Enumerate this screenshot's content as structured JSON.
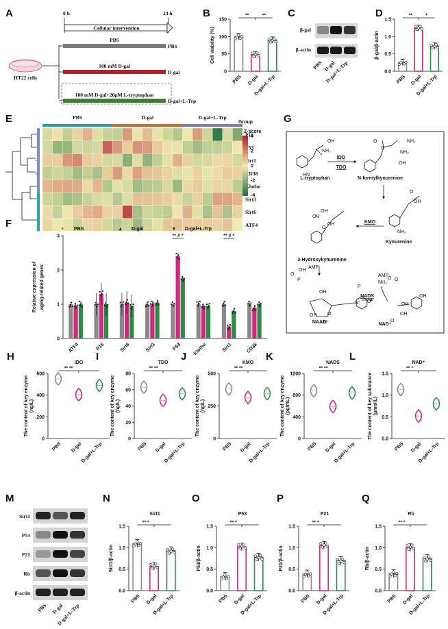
{
  "colors": {
    "pbs": "#8a8a8a",
    "dgal": "#d0287e",
    "ltrp": "#2e8b46",
    "heat_hi": "#b01c2a",
    "heat_mid": "#f2ebb0",
    "heat_lo": "#1d6e3a"
  },
  "panels": {
    "A": {
      "letter": "A",
      "t0": "0 h",
      "t24": "24 h",
      "header": "Cellular intervention",
      "cells": "HT22 cells",
      "rows": [
        {
          "text": "PBS",
          "label": "PBS"
        },
        {
          "text": "100 mM D-gal",
          "label": "D-gal"
        },
        {
          "text": "100 mM D-gal+20μM L-tryptophan",
          "label": "D-gal+L-Trp"
        }
      ]
    },
    "B": {
      "letter": "B",
      "sig1": "**",
      "sig2": "**"
    },
    "C": {
      "letter": "C",
      "rows": [
        "β-gal",
        "β-actin"
      ],
      "lanes": [
        "PBS",
        "D-gal",
        "D-gal+L-Trp"
      ]
    },
    "D": {
      "letter": "D",
      "sig1": "**",
      "sig2": "*"
    },
    "E": {
      "letter": "E",
      "group_label": "Group",
      "groups": [
        "PBS",
        "D-gal",
        "D-gal+L-Trp"
      ],
      "genes": [
        "P16",
        "P53",
        "Sirt1",
        "CD38",
        "Klotho",
        "Sirt3",
        "Sirt6",
        "ATF4"
      ],
      "legend_title": "Z-score",
      "legend_ticks": [
        "4",
        "2",
        "0",
        "-2",
        "-4"
      ]
    },
    "F": {
      "letter": "F",
      "legend": [
        "PBS",
        "D-gal",
        "D-gal+L-Trp"
      ],
      "markers": [
        "•",
        "▴",
        "▾"
      ],
      "sig": "** # *"
    },
    "G": {
      "letter": "G",
      "enzymes": [
        "IDO",
        "TDO",
        "KMO",
        "NADS"
      ],
      "compounds": [
        "L-tryptophan",
        "N-formylkynurenine",
        "Kynurenine",
        "3-Hydroxykynurenine",
        "NAAD",
        "NAD⁺"
      ],
      "groups": [
        "OH",
        "NH₂",
        "HN",
        "NH₂",
        "OH",
        "O",
        "NH₂",
        "O",
        "OH",
        "O",
        "NH₂",
        "OH",
        "OH",
        "OH",
        "O",
        "AMP",
        "P",
        "OH",
        "O",
        "OH",
        "OH",
        "N⁺",
        "O",
        "N⁺",
        "NH₂",
        "O",
        "P",
        "AMP",
        "O",
        "O",
        "OH",
        "O",
        "OH",
        "OH"
      ]
    },
    "H": {
      "letter": "H",
      "title": "IDO",
      "sig": "** **"
    },
    "I": {
      "letter": "I",
      "title": "TDO",
      "sig": "** **"
    },
    "J": {
      "letter": "J",
      "title": "KMO",
      "sig": "** **"
    },
    "K": {
      "letter": "K",
      "title": "NADS",
      "sig": "** **"
    },
    "L": {
      "letter": "L",
      "title": "NAD⁺",
      "sig": "** *"
    },
    "M": {
      "letter": "M",
      "rows": [
        "Sirt1",
        "P53",
        "P21",
        "Rb",
        "β-actin"
      ],
      "lanes": [
        "PBS",
        "D-gal",
        "D-gal+L-Trp"
      ]
    },
    "N": {
      "letter": "N",
      "title": "Sirt1",
      "sig": "** *"
    },
    "O": {
      "letter": "O",
      "title": "P53",
      "sig": "** *"
    },
    "P": {
      "letter": "P",
      "title": "P21",
      "sig": "** *"
    },
    "Q": {
      "letter": "Q",
      "title": "Rb",
      "sig": "** *"
    }
  },
  "chart_data": [
    {
      "id": "B",
      "type": "bar",
      "categories": [
        "PBS",
        "D-gal",
        "D-gal+L-Trp"
      ],
      "values": [
        100,
        47,
        90
      ],
      "ylabel": "Cell viability (%)",
      "ylim": [
        0,
        150
      ],
      "yticks": [
        "0",
        "50",
        "100",
        "150"
      ]
    },
    {
      "id": "D",
      "type": "bar",
      "categories": [
        "PBS",
        "D-gal",
        "D-gal+L-Trp"
      ],
      "values": [
        0.26,
        1.24,
        0.73
      ],
      "ylabel": "β-gal/β-actin",
      "ylim": [
        0,
        1.5
      ],
      "yticks": [
        "0.0",
        "0.5",
        "1.0",
        "1.5"
      ]
    },
    {
      "id": "E",
      "type": "heatmap",
      "rows": [
        "P16",
        "P53",
        "Sirt1",
        "CD38",
        "Klotho",
        "Sirt3",
        "Sirt6",
        "ATF4"
      ],
      "values": [
        [
          -0.5,
          0.2,
          -0.9,
          0.5,
          1.1,
          -0.4,
          -0.8,
          -0.9,
          1.6,
          -0.2,
          0.9,
          -0.2,
          -0.7,
          -1.2,
          -0.1,
          1.5,
          -0.7,
          -3.6,
          -0.5,
          -2.1
        ],
        [
          -0.6,
          -1.7,
          -1.7,
          -0.6,
          -0.7,
          -0.6,
          2.6,
          1.6,
          0.6,
          1.7,
          1.5,
          0.6,
          0.2,
          -0.2,
          -0.9,
          -1.5,
          -0.9,
          -0.9,
          -0.7,
          0.1
        ],
        [
          0.6,
          0.6,
          1.6,
          1.9,
          0.6,
          0.5,
          -0.6,
          -0.5,
          -1.9,
          -0.4,
          -1.8,
          -0.9,
          -0.3,
          1.1,
          0.5,
          -0.6,
          -0.5,
          0.3,
          0.4,
          -0.6
        ],
        [
          -0.9,
          -0.7,
          -0.9,
          -1.5,
          -0.9,
          -1.3,
          0.6,
          1.5,
          0.3,
          1.4,
          0.8,
          0.7,
          0.5,
          -0.4,
          -0.2,
          0.5,
          -0.2,
          0.3,
          0.6,
          0.5
        ],
        [
          1.0,
          1.2,
          1.3,
          1.2,
          0.3,
          1.0,
          -1.2,
          -0.3,
          -0.5,
          -1.5,
          -1.1,
          -1.0,
          -0.5,
          -1.6,
          0.3,
          0.6,
          -0.3,
          0.4,
          0.4,
          -1.0
        ],
        [
          -0.7,
          -0.9,
          -1.5,
          -1.3,
          -0.8,
          -0.5,
          -0.4,
          -1.1,
          -0.4,
          0.8,
          0.8,
          0.7,
          0.6,
          0.3,
          -0.8,
          0.5,
          -1.0,
          1.4,
          1.4,
          1.0
        ],
        [
          0.3,
          -0.8,
          0.1,
          0.6,
          1.0,
          1.2,
          0.5,
          0.5,
          3.1,
          -1.4,
          -0.7,
          -0.8,
          -1.0,
          0.1,
          1.1,
          -0.3,
          -1.3,
          0.8,
          -1.3,
          0.5
        ],
        [
          0.4,
          -0.1,
          -0.2,
          -0.8,
          0.4,
          0.5,
          -0.6,
          -1.1,
          -0.7,
          -1.6,
          -0.7,
          -0.3,
          0.7,
          0.8,
          0.6,
          0.6,
          0.6,
          0.5,
          0.8,
          0.0
        ]
      ],
      "zlim": [
        -4,
        4
      ]
    },
    {
      "id": "F",
      "type": "bar",
      "categories": [
        "ATF4",
        "P16",
        "Sirt6",
        "Sirt3",
        "P53",
        "Klotho",
        "Sirt1",
        "CD38"
      ],
      "series": [
        {
          "name": "PBS",
          "values": [
            1.0,
            1.0,
            1.0,
            1.0,
            1.0,
            1.0,
            1.0,
            1.0
          ]
        },
        {
          "name": "D-gal",
          "values": [
            0.95,
            1.3,
            1.05,
            1.0,
            2.4,
            0.95,
            0.35,
            0.9
          ]
        },
        {
          "name": "D-gal+L-Trp",
          "values": [
            1.0,
            1.0,
            0.95,
            1.05,
            1.75,
            0.95,
            0.8,
            1.0
          ]
        }
      ],
      "ylabel": "Relative expression of aging-related genes",
      "ylim": [
        0,
        3
      ],
      "yticks": [
        "0",
        "1",
        "2",
        "3"
      ]
    },
    {
      "id": "H",
      "type": "violin",
      "categories": [
        "PBS",
        "D-gal",
        "D-gal+L-Trp"
      ],
      "values": [
        550,
        405,
        490
      ],
      "ylabel": "The content of key enzyme (ng/L)",
      "ylim": [
        0,
        600
      ],
      "yticks": [
        "0",
        "200",
        "400",
        "600"
      ]
    },
    {
      "id": "I",
      "type": "violin",
      "categories": [
        "PBS",
        "D-gal",
        "D-gal+L-Trp"
      ],
      "values": [
        63,
        47,
        55
      ],
      "ylabel": "The content of key enzyme (ng/L)",
      "ylim": [
        0,
        80
      ],
      "yticks": [
        "0",
        "20",
        "40",
        "60",
        "80"
      ]
    },
    {
      "id": "J",
      "type": "violin",
      "categories": [
        "PBS",
        "D-gal",
        "D-gal+L-Trp"
      ],
      "values": [
        380,
        315,
        345
      ],
      "ylabel": "The content of key enzyme (ng/L)",
      "ylim": [
        0,
        500
      ],
      "yticks": [
        "0",
        "250",
        "500"
      ]
    },
    {
      "id": "K",
      "type": "violin",
      "categories": [
        "PBS",
        "D-gal",
        "D-gal+L-Trp"
      ],
      "values": [
        880,
        590,
        840
      ],
      "ylabel": "The content of key enzyme (pg/mL)",
      "ylim": [
        0,
        1200
      ],
      "yticks": [
        "0",
        "400",
        "800",
        "1200"
      ]
    },
    {
      "id": "L",
      "type": "violin",
      "categories": [
        "PBS",
        "D-gal",
        "D-gal+L-Trp"
      ],
      "values": [
        1.13,
        0.52,
        0.8
      ],
      "ylabel": "The content of key substance (μmol/L)",
      "ylim": [
        0,
        1.5
      ],
      "yticks": [
        "0.0",
        "0.5",
        "1.0",
        "1.5"
      ]
    },
    {
      "id": "N",
      "type": "bar",
      "categories": [
        "PBS",
        "D-gal",
        "D-gal+L-Trp"
      ],
      "values": [
        1.1,
        0.56,
        0.93
      ],
      "ylabel": "Sirt1/β-actin",
      "ylim": [
        0,
        1.5
      ],
      "yticks": [
        "0.0",
        "0.5",
        "1.0",
        "1.5"
      ]
    },
    {
      "id": "O",
      "type": "bar",
      "categories": [
        "PBS",
        "D-gal",
        "D-gal+L-Trp"
      ],
      "values": [
        0.33,
        1.02,
        0.78
      ],
      "ylabel": "P53/β-actin",
      "ylim": [
        0,
        1.5
      ],
      "yticks": [
        "0.0",
        "0.5",
        "1.0",
        "1.5"
      ]
    },
    {
      "id": "P",
      "type": "bar",
      "categories": [
        "PBS",
        "D-gal",
        "D-gal+L-Trp"
      ],
      "values": [
        0.39,
        1.05,
        0.7
      ],
      "ylabel": "P21/β-actin",
      "ylim": [
        0,
        1.5
      ],
      "yticks": [
        "0.0",
        "0.5",
        "1.0",
        "1.5"
      ]
    },
    {
      "id": "Q",
      "type": "bar",
      "categories": [
        "PBS",
        "D-gal",
        "D-gal+L-Trp"
      ],
      "values": [
        0.4,
        1.0,
        0.75
      ],
      "ylabel": "Rb/β-actin",
      "ylim": [
        0,
        1.5
      ],
      "yticks": [
        "0.0",
        "0.5",
        "1.0",
        "1.5"
      ]
    }
  ]
}
